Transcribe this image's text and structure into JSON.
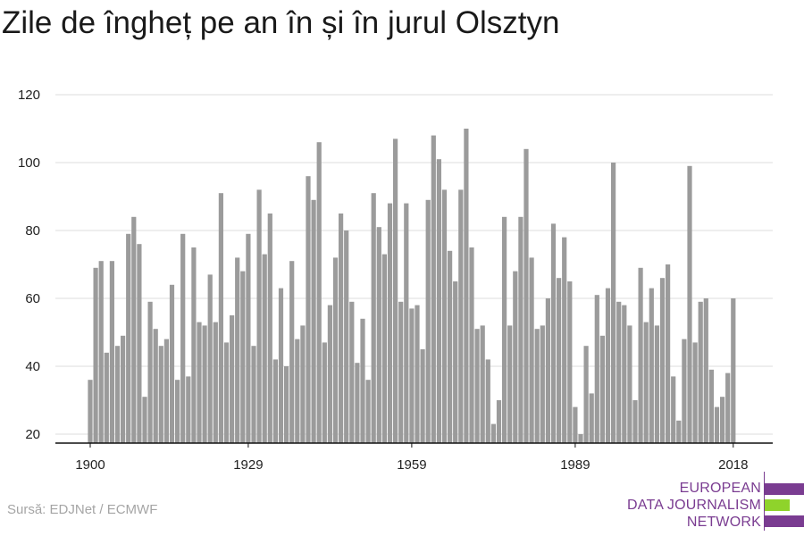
{
  "title": "Zile de îngheț pe an în și în jurul Olsztyn",
  "source": "Sursă: EDJNet / ECMWF",
  "logo": {
    "lines": [
      "EUROPEAN",
      "DATA JOURNALISM",
      "NETWORK"
    ],
    "colors": {
      "text": "#7a3c91",
      "bar_purple": "#7a3c91",
      "bar_green": "#8fd32b"
    }
  },
  "chart_data": {
    "type": "bar",
    "title": "Zile de îngheț pe an în și în jurul Olsztyn",
    "x_start_year": 1900,
    "x_tick_labels": [
      "1900",
      "1929",
      "1959",
      "1989",
      "2018"
    ],
    "y_ticks": [
      20,
      40,
      60,
      80,
      100,
      120
    ],
    "ylim": [
      17,
      122
    ],
    "grid": true,
    "bar_color": "#9b9b9b",
    "values": [
      36,
      69,
      71,
      44,
      71,
      46,
      49,
      79,
      84,
      76,
      31,
      59,
      51,
      46,
      48,
      64,
      36,
      79,
      37,
      75,
      53,
      52,
      67,
      53,
      91,
      47,
      55,
      72,
      68,
      79,
      46,
      92,
      73,
      85,
      42,
      63,
      40,
      71,
      48,
      52,
      96,
      89,
      106,
      47,
      58,
      72,
      85,
      80,
      59,
      41,
      54,
      36,
      91,
      81,
      73,
      88,
      107,
      59,
      88,
      57,
      58,
      45,
      89,
      108,
      101,
      92,
      74,
      65,
      92,
      110,
      75,
      51,
      52,
      42,
      23,
      30,
      84,
      52,
      68,
      84,
      104,
      72,
      51,
      52,
      60,
      82,
      66,
      78,
      65,
      28,
      20,
      46,
      32,
      61,
      49,
      63,
      100,
      59,
      58,
      52,
      30,
      69,
      53,
      63,
      52,
      66,
      70,
      37,
      24,
      48,
      99,
      47,
      59,
      60,
      39,
      28,
      31,
      38,
      60
    ]
  }
}
